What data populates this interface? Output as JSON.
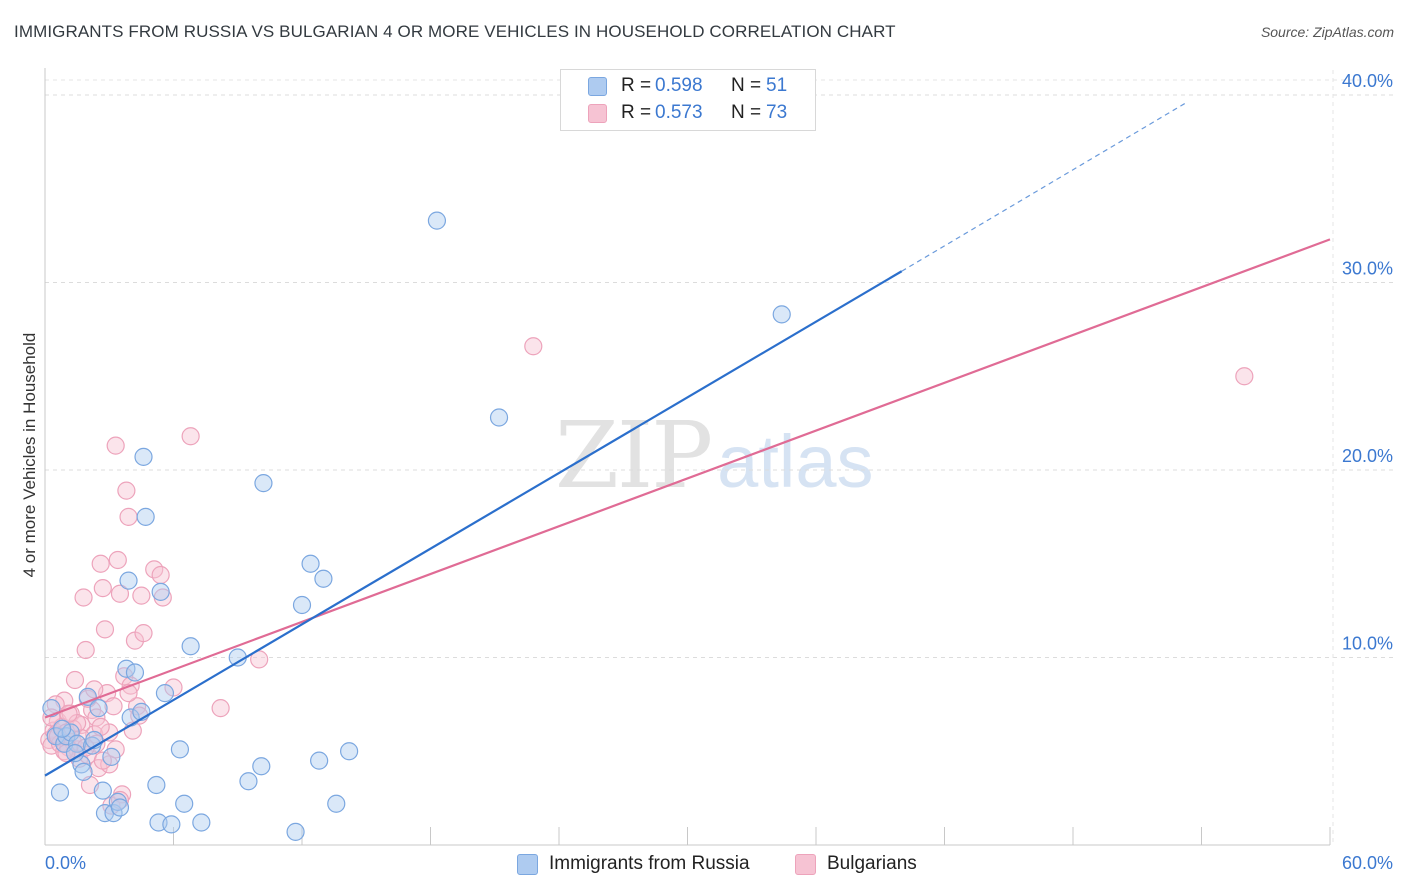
{
  "header": {
    "title": "IMMIGRANTS FROM RUSSIA VS BULGARIAN 4 OR MORE VEHICLES IN HOUSEHOLD CORRELATION CHART",
    "source": "Source: ZipAtlas.com"
  },
  "watermark": {
    "zip": "ZIP",
    "atlas": "atlas"
  },
  "legend": {
    "rows": [
      {
        "r_label": "R =",
        "r_value": "0.598",
        "n_label": "N =",
        "n_value": "51"
      },
      {
        "r_label": "R =",
        "r_value": "0.573",
        "n_label": "N =",
        "n_value": "73"
      }
    ]
  },
  "chart_data": {
    "type": "scatter",
    "title": "IMMIGRANTS FROM RUSSIA VS BULGARIAN 4 OR MORE VEHICLES IN HOUSEHOLD CORRELATION CHART",
    "xlabel": "",
    "ylabel": "4 or more Vehicles in Household",
    "xlim": [
      0,
      60
    ],
    "ylim": [
      0,
      40.8
    ],
    "x_tick_labels": [
      "0.0%",
      "60.0%"
    ],
    "y_ticks": [
      10,
      20,
      30,
      40
    ],
    "y_tick_labels": [
      "10.0%",
      "20.0%",
      "30.0%",
      "40.0%"
    ],
    "grid": true,
    "legend_position": "top-center",
    "series": [
      {
        "name": "Immigrants from Russia",
        "color": "#7ba7e0",
        "fill": "#aecbf0",
        "line_color": "#2b6fcc",
        "trend": {
          "x0": 0,
          "y0": 3.7,
          "x1": 40,
          "y1": 30.6,
          "dash_x1": 53.3,
          "dash_y1": 39.6
        },
        "points": [
          [
            0.3,
            7.3
          ],
          [
            0.5,
            5.8
          ],
          [
            0.7,
            2.8
          ],
          [
            0.9,
            5.4
          ],
          [
            1.0,
            5.8
          ],
          [
            1.2,
            6.0
          ],
          [
            1.5,
            5.4
          ],
          [
            1.7,
            4.3
          ],
          [
            1.8,
            3.9
          ],
          [
            2.0,
            7.9
          ],
          [
            2.2,
            5.3
          ],
          [
            2.3,
            5.6
          ],
          [
            2.5,
            7.3
          ],
          [
            2.7,
            2.9
          ],
          [
            2.8,
            1.7
          ],
          [
            3.1,
            4.7
          ],
          [
            3.2,
            1.7
          ],
          [
            3.4,
            2.3
          ],
          [
            3.5,
            2.0
          ],
          [
            3.8,
            9.4
          ],
          [
            3.9,
            14.1
          ],
          [
            4.0,
            6.8
          ],
          [
            4.2,
            9.2
          ],
          [
            4.5,
            7.1
          ],
          [
            4.6,
            20.7
          ],
          [
            4.7,
            17.5
          ],
          [
            5.2,
            3.2
          ],
          [
            5.3,
            1.2
          ],
          [
            5.4,
            13.5
          ],
          [
            5.6,
            8.1
          ],
          [
            5.9,
            1.1
          ],
          [
            6.3,
            5.1
          ],
          [
            6.5,
            2.2
          ],
          [
            6.8,
            10.6
          ],
          [
            7.3,
            1.2
          ],
          [
            9.0,
            10.0
          ],
          [
            9.5,
            3.4
          ],
          [
            10.1,
            4.2
          ],
          [
            10.2,
            19.3
          ],
          [
            11.7,
            0.7
          ],
          [
            12.0,
            12.8
          ],
          [
            12.4,
            15.0
          ],
          [
            12.8,
            4.5
          ],
          [
            13.0,
            14.2
          ],
          [
            13.6,
            2.2
          ],
          [
            14.2,
            5.0
          ],
          [
            18.3,
            33.3
          ],
          [
            21.2,
            22.8
          ],
          [
            34.4,
            28.3
          ],
          [
            1.4,
            4.9
          ],
          [
            0.8,
            6.2
          ]
        ]
      },
      {
        "name": "Bulgarians",
        "color": "#eda3bb",
        "fill": "#f6c3d3",
        "line_color": "#e06b95",
        "trend": {
          "x0": 0,
          "y0": 6.8,
          "x1": 60,
          "y1": 32.3
        },
        "points": [
          [
            0.2,
            5.6
          ],
          [
            0.3,
            5.3
          ],
          [
            0.4,
            6.1
          ],
          [
            0.5,
            5.9
          ],
          [
            0.6,
            6.6
          ],
          [
            0.7,
            5.4
          ],
          [
            0.8,
            6.3
          ],
          [
            0.9,
            7.7
          ],
          [
            1.0,
            6.0
          ],
          [
            1.1,
            5.2
          ],
          [
            1.2,
            7.0
          ],
          [
            1.3,
            5.5
          ],
          [
            1.4,
            8.8
          ],
          [
            1.5,
            5.1
          ],
          [
            1.6,
            4.6
          ],
          [
            1.7,
            6.4
          ],
          [
            1.8,
            13.2
          ],
          [
            1.9,
            10.4
          ],
          [
            2.0,
            4.8
          ],
          [
            2.1,
            3.2
          ],
          [
            2.2,
            7.2
          ],
          [
            2.3,
            5.9
          ],
          [
            2.4,
            6.8
          ],
          [
            2.5,
            4.1
          ],
          [
            2.6,
            15.0
          ],
          [
            2.7,
            13.7
          ],
          [
            2.8,
            11.5
          ],
          [
            2.9,
            8.1
          ],
          [
            3.0,
            4.3
          ],
          [
            3.1,
            2.1
          ],
          [
            3.2,
            7.4
          ],
          [
            3.3,
            21.3
          ],
          [
            3.4,
            15.2
          ],
          [
            3.5,
            13.4
          ],
          [
            3.6,
            2.7
          ],
          [
            3.7,
            9.0
          ],
          [
            3.8,
            18.9
          ],
          [
            3.9,
            17.5
          ],
          [
            4.0,
            8.5
          ],
          [
            4.1,
            6.1
          ],
          [
            4.2,
            10.9
          ],
          [
            4.3,
            7.4
          ],
          [
            4.4,
            6.9
          ],
          [
            4.5,
            13.3
          ],
          [
            4.6,
            11.3
          ],
          [
            5.1,
            14.7
          ],
          [
            5.4,
            14.4
          ],
          [
            5.5,
            13.2
          ],
          [
            6.0,
            8.4
          ],
          [
            6.8,
            21.8
          ],
          [
            8.2,
            7.3
          ],
          [
            10.0,
            9.9
          ],
          [
            22.8,
            26.6
          ],
          [
            56.0,
            25.0
          ],
          [
            0.5,
            7.5
          ],
          [
            0.9,
            5.0
          ],
          [
            1.3,
            6.2
          ],
          [
            1.7,
            5.7
          ],
          [
            2.0,
            7.8
          ],
          [
            2.4,
            5.4
          ],
          [
            2.7,
            4.5
          ],
          [
            3.0,
            6.0
          ],
          [
            3.3,
            5.1
          ],
          [
            0.3,
            6.8
          ],
          [
            0.6,
            5.8
          ],
          [
            1.0,
            4.9
          ],
          [
            1.5,
            6.5
          ],
          [
            1.9,
            5.2
          ],
          [
            2.3,
            8.3
          ],
          [
            2.6,
            6.3
          ],
          [
            3.5,
            2.4
          ],
          [
            3.9,
            8.1
          ],
          [
            1.1,
            7.0
          ]
        ]
      }
    ]
  },
  "bottom_legend": {
    "items": [
      {
        "label": "Immigrants from Russia"
      },
      {
        "label": "Bulgarians"
      }
    ]
  }
}
